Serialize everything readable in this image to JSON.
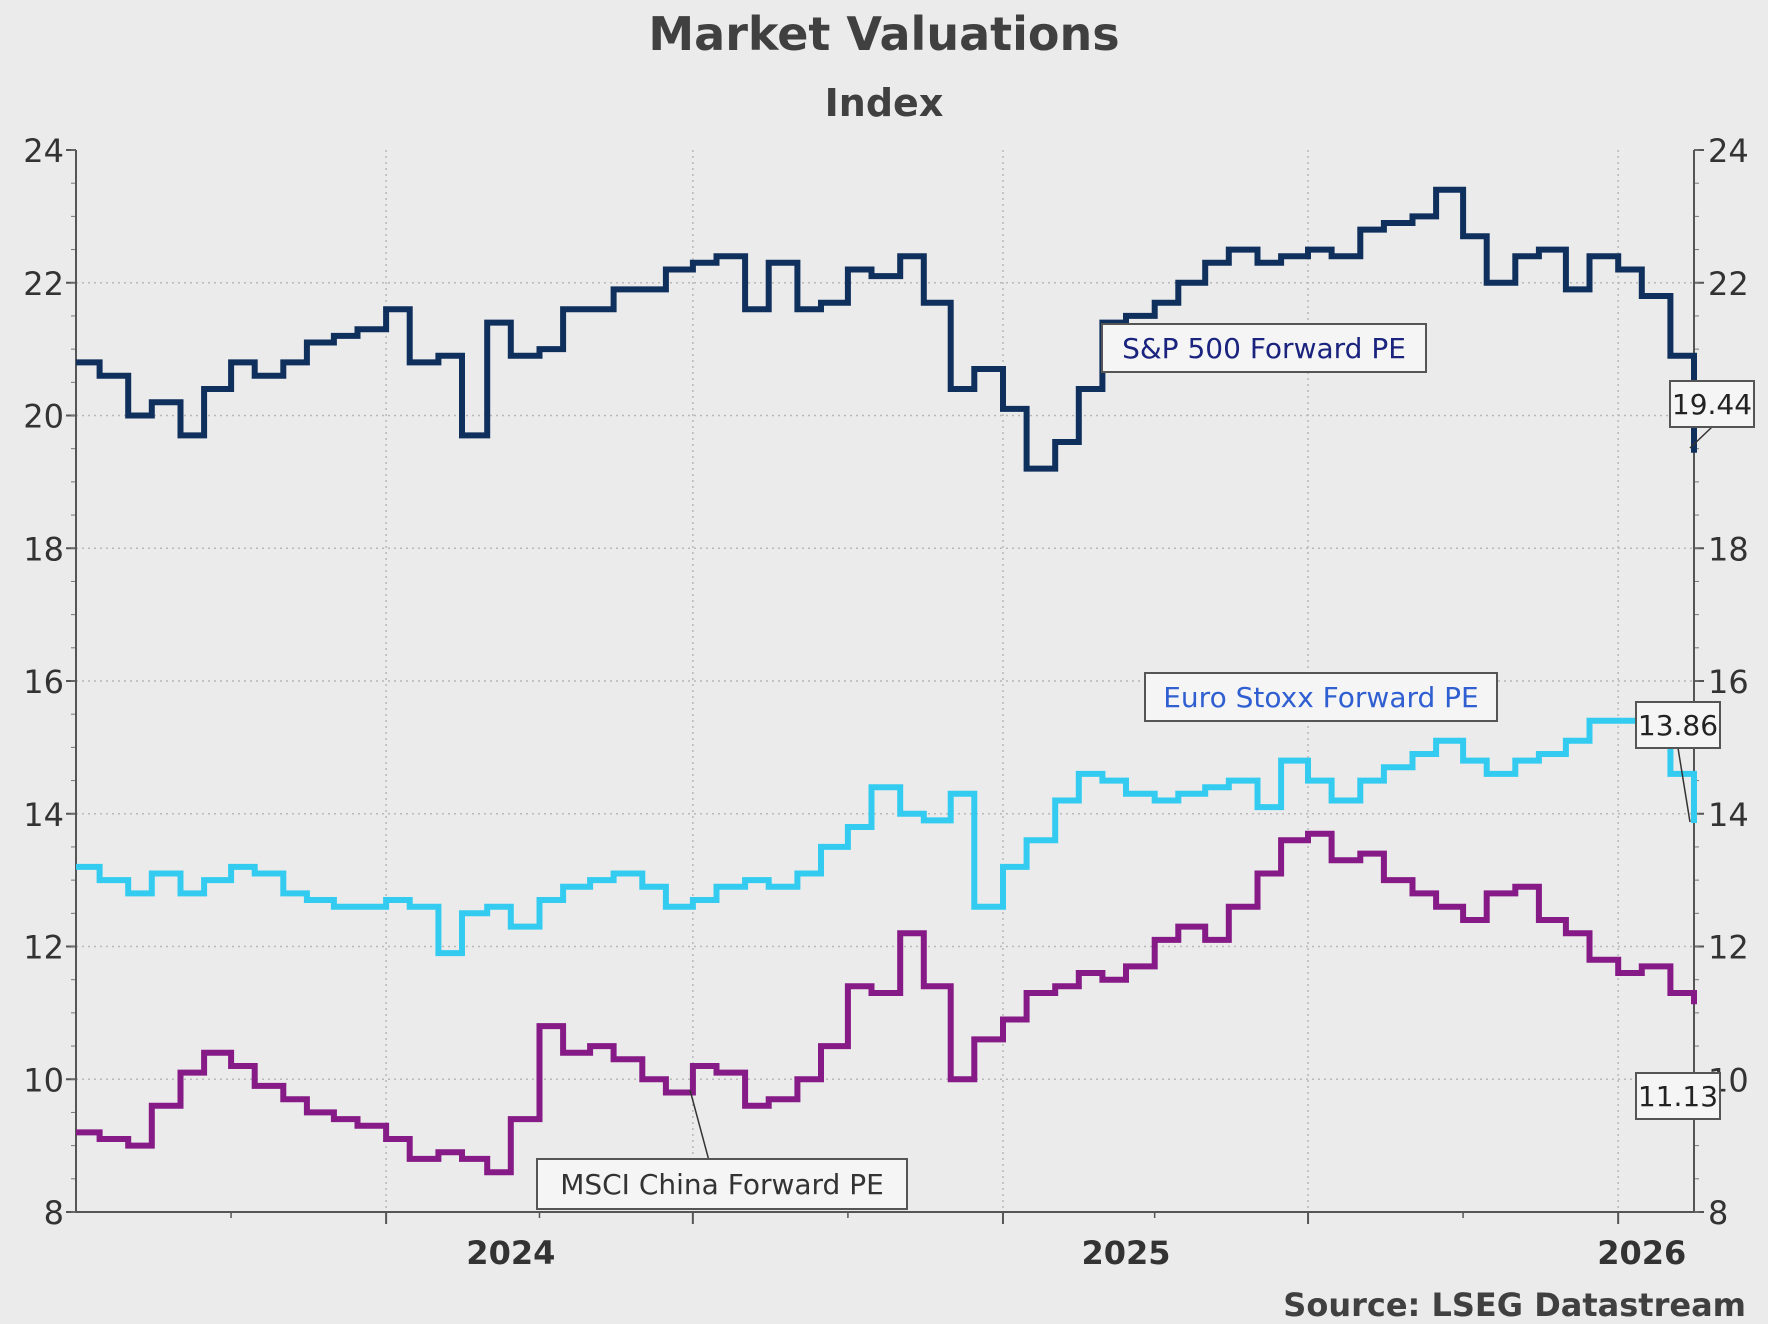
{
  "chart_data": {
    "type": "line",
    "title": "Market Valuations",
    "subtitle": "Index",
    "source": "Source: LSEG Datastream",
    "ylim": [
      8,
      24
    ],
    "yticks": [
      8,
      10,
      12,
      14,
      16,
      18,
      20,
      22,
      24
    ],
    "ytick_labels": [
      "8",
      "10",
      "12",
      "14",
      "16",
      "18",
      "20",
      "22",
      "24"
    ],
    "xlim": [
      "2023-07-01",
      "2026-02-15"
    ],
    "xtick_labels": [
      {
        "date": "2024-03-15",
        "label": "2024"
      },
      {
        "date": "2025-03-15",
        "label": "2025"
      },
      {
        "date": "2026-01-15",
        "label": "2026"
      }
    ],
    "grid": true,
    "series": [
      {
        "name": "S&P 500 Forward PE",
        "color": "#0f2f5c",
        "last_value": "19.44",
        "label_color": "#1a237e",
        "x": [
          "2023-07-01",
          "2023-07-15",
          "2023-08-01",
          "2023-08-15",
          "2023-09-01",
          "2023-09-15",
          "2023-10-01",
          "2023-10-15",
          "2023-11-01",
          "2023-11-15",
          "2023-12-01",
          "2023-12-15",
          "2024-01-01",
          "2024-01-15",
          "2024-02-01",
          "2024-02-15",
          "2024-03-01",
          "2024-03-15",
          "2024-04-01",
          "2024-04-15",
          "2024-05-01",
          "2024-05-15",
          "2024-06-01",
          "2024-06-15",
          "2024-07-01",
          "2024-07-15",
          "2024-08-01",
          "2024-08-15",
          "2024-09-01",
          "2024-09-15",
          "2024-10-01",
          "2024-10-15",
          "2024-11-01",
          "2024-11-15",
          "2024-12-01",
          "2024-12-15",
          "2025-01-01",
          "2025-01-15",
          "2025-02-01",
          "2025-02-15",
          "2025-03-01",
          "2025-03-15",
          "2025-04-01",
          "2025-04-15",
          "2025-05-01",
          "2025-05-15",
          "2025-06-01",
          "2025-06-15",
          "2025-07-01",
          "2025-07-15",
          "2025-08-01",
          "2025-08-15",
          "2025-09-01",
          "2025-09-15",
          "2025-10-01",
          "2025-10-15",
          "2025-11-01",
          "2025-11-15",
          "2025-12-01",
          "2025-12-15",
          "2026-01-01",
          "2026-01-15",
          "2026-02-01",
          "2026-02-15"
        ],
        "values": [
          20.8,
          20.6,
          20.0,
          20.2,
          19.7,
          20.4,
          20.8,
          20.6,
          20.8,
          21.1,
          21.2,
          21.3,
          21.6,
          20.8,
          20.9,
          19.7,
          21.4,
          20.9,
          21.0,
          21.6,
          21.6,
          21.9,
          21.9,
          22.2,
          22.3,
          22.4,
          21.6,
          22.3,
          21.6,
          21.7,
          22.2,
          22.1,
          22.4,
          21.7,
          20.4,
          20.7,
          20.1,
          19.2,
          19.6,
          20.4,
          21.4,
          21.5,
          21.7,
          22.0,
          22.3,
          22.5,
          22.3,
          22.4,
          22.5,
          22.4,
          22.8,
          22.9,
          23.0,
          23.4,
          22.7,
          22.0,
          22.4,
          22.5,
          21.9,
          22.4,
          22.2,
          21.8,
          20.9,
          19.44
        ]
      },
      {
        "name": "Euro Stoxx Forward PE",
        "color": "#33ccf0",
        "last_value": "13.86",
        "label_color": "#2f5fd0",
        "x": [
          "2023-07-01",
          "2023-07-15",
          "2023-08-01",
          "2023-08-15",
          "2023-09-01",
          "2023-09-15",
          "2023-10-01",
          "2023-10-15",
          "2023-11-01",
          "2023-11-15",
          "2023-12-01",
          "2023-12-15",
          "2024-01-01",
          "2024-01-15",
          "2024-02-01",
          "2024-02-15",
          "2024-03-01",
          "2024-03-15",
          "2024-04-01",
          "2024-04-15",
          "2024-05-01",
          "2024-05-15",
          "2024-06-01",
          "2024-06-15",
          "2024-07-01",
          "2024-07-15",
          "2024-08-01",
          "2024-08-15",
          "2024-09-01",
          "2024-09-15",
          "2024-10-01",
          "2024-10-15",
          "2024-11-01",
          "2024-11-15",
          "2024-12-01",
          "2024-12-15",
          "2025-01-01",
          "2025-01-15",
          "2025-02-01",
          "2025-02-15",
          "2025-03-01",
          "2025-03-15",
          "2025-04-01",
          "2025-04-15",
          "2025-05-01",
          "2025-05-15",
          "2025-06-01",
          "2025-06-15",
          "2025-07-01",
          "2025-07-15",
          "2025-08-01",
          "2025-08-15",
          "2025-09-01",
          "2025-09-15",
          "2025-10-01",
          "2025-10-15",
          "2025-11-01",
          "2025-11-15",
          "2025-12-01",
          "2025-12-15",
          "2026-01-01",
          "2026-01-15",
          "2026-02-01",
          "2026-02-15"
        ],
        "values": [
          13.2,
          13.0,
          12.8,
          13.1,
          12.8,
          13.0,
          13.2,
          13.1,
          12.8,
          12.7,
          12.6,
          12.6,
          12.7,
          12.6,
          11.9,
          12.5,
          12.6,
          12.3,
          12.7,
          12.9,
          13.0,
          13.1,
          12.9,
          12.6,
          12.7,
          12.9,
          13.0,
          12.9,
          13.1,
          13.5,
          13.8,
          14.4,
          14.0,
          13.9,
          14.3,
          12.6,
          13.2,
          13.6,
          14.2,
          14.6,
          14.5,
          14.3,
          14.2,
          14.3,
          14.4,
          14.5,
          14.1,
          14.8,
          14.5,
          14.2,
          14.5,
          14.7,
          14.9,
          15.1,
          14.8,
          14.6,
          14.8,
          14.9,
          15.1,
          15.4,
          15.4,
          15.5,
          14.6,
          13.86
        ]
      },
      {
        "name": "MSCI China Forward PE",
        "color": "#861a86",
        "last_value": "11.13",
        "label_color": "#333333",
        "x": [
          "2023-07-01",
          "2023-07-15",
          "2023-08-01",
          "2023-08-15",
          "2023-09-01",
          "2023-09-15",
          "2023-10-01",
          "2023-10-15",
          "2023-11-01",
          "2023-11-15",
          "2023-12-01",
          "2023-12-15",
          "2024-01-01",
          "2024-01-15",
          "2024-02-01",
          "2024-02-15",
          "2024-03-01",
          "2024-03-15",
          "2024-04-01",
          "2024-04-15",
          "2024-05-01",
          "2024-05-15",
          "2024-06-01",
          "2024-06-15",
          "2024-07-01",
          "2024-07-15",
          "2024-08-01",
          "2024-08-15",
          "2024-09-01",
          "2024-09-15",
          "2024-10-01",
          "2024-10-15",
          "2024-11-01",
          "2024-11-15",
          "2024-12-01",
          "2024-12-15",
          "2025-01-01",
          "2025-01-15",
          "2025-02-01",
          "2025-02-15",
          "2025-03-01",
          "2025-03-15",
          "2025-04-01",
          "2025-04-15",
          "2025-05-01",
          "2025-05-15",
          "2025-06-01",
          "2025-06-15",
          "2025-07-01",
          "2025-07-15",
          "2025-08-01",
          "2025-08-15",
          "2025-09-01",
          "2025-09-15",
          "2025-10-01",
          "2025-10-15",
          "2025-11-01",
          "2025-11-15",
          "2025-12-01",
          "2025-12-15",
          "2026-01-01",
          "2026-01-15",
          "2026-02-01",
          "2026-02-15"
        ],
        "values": [
          9.2,
          9.1,
          9.0,
          9.6,
          10.1,
          10.4,
          10.2,
          9.9,
          9.7,
          9.5,
          9.4,
          9.3,
          9.1,
          8.8,
          8.9,
          8.8,
          8.6,
          9.4,
          10.8,
          10.4,
          10.5,
          10.3,
          10.0,
          9.8,
          10.2,
          10.1,
          9.6,
          9.7,
          10.0,
          10.5,
          11.4,
          11.3,
          12.2,
          11.4,
          10.0,
          10.6,
          10.9,
          11.3,
          11.4,
          11.6,
          11.5,
          11.7,
          12.1,
          12.3,
          12.1,
          12.6,
          13.1,
          13.6,
          13.7,
          13.3,
          13.4,
          13.0,
          12.8,
          12.6,
          12.4,
          12.8,
          12.9,
          12.4,
          12.2,
          11.8,
          11.6,
          11.7,
          11.3,
          11.13
        ]
      }
    ]
  }
}
